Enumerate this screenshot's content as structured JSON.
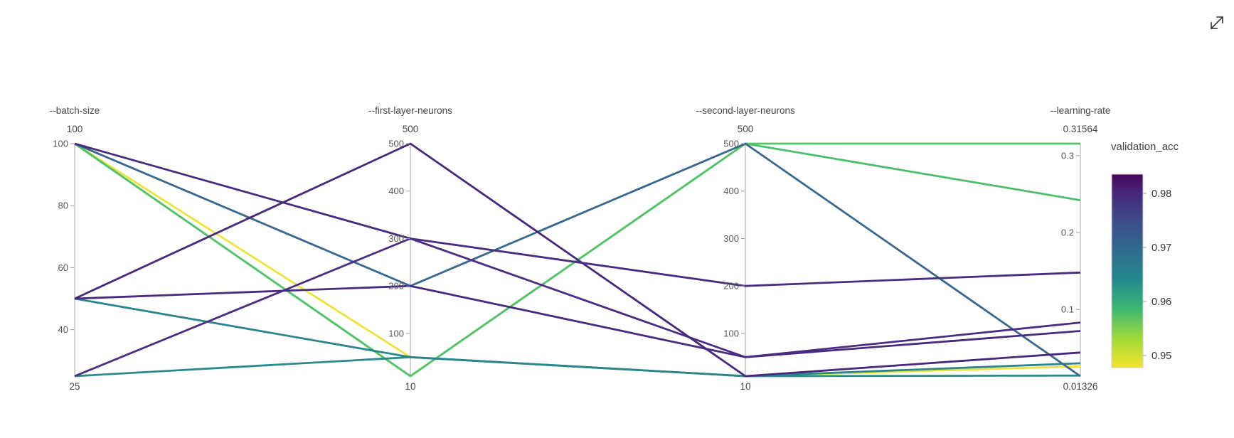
{
  "window": {
    "background": "#ffffff"
  },
  "expand_button": {
    "tooltip": "expand"
  },
  "chart_data": {
    "type": "parallel-coordinates",
    "color_feature": "validation_acc",
    "legend_position": "right",
    "grid": false,
    "axes": [
      {
        "label": "--batch-size",
        "min": 25,
        "max": 100,
        "top_label": "100",
        "bottom_label": "25",
        "ticks": [
          40,
          60,
          80,
          100
        ],
        "tick_labels": [
          "40",
          "60",
          "80",
          "100"
        ]
      },
      {
        "label": "--first-layer-neurons",
        "min": 10,
        "max": 500,
        "top_label": "500",
        "bottom_label": "10",
        "ticks": [
          100,
          200,
          300,
          400,
          500
        ],
        "tick_labels": [
          "100",
          "200",
          "300",
          "400",
          "500"
        ]
      },
      {
        "label": "--second-layer-neurons",
        "min": 10,
        "max": 500,
        "top_label": "500",
        "bottom_label": "10",
        "ticks": [
          100,
          200,
          300,
          400,
          500
        ],
        "tick_labels": [
          "100",
          "200",
          "300",
          "400",
          "500"
        ]
      },
      {
        "label": "--learning-rate",
        "min": 0.01326,
        "max": 0.31564,
        "top_label": "0.31564",
        "bottom_label": "0.01326",
        "ticks": [
          0.1,
          0.2,
          0.3
        ],
        "tick_labels": [
          "0.1",
          "0.2",
          "0.3"
        ]
      }
    ],
    "lines": [
      {
        "values": [
          100,
          50,
          10,
          0.026
        ],
        "validation_acc": 0.948,
        "color": "#ece33b"
      },
      {
        "values": [
          100,
          10,
          500,
          0.242
        ],
        "validation_acc": 0.959,
        "color": "#4dbe6c"
      },
      {
        "values": [
          100,
          10,
          500,
          0.31564
        ],
        "validation_acc": 0.96,
        "color": "#52c366"
      },
      {
        "values": [
          25,
          50,
          10,
          0.014
        ],
        "validation_acc": 0.966,
        "color": "#2b8a8c"
      },
      {
        "values": [
          50,
          50,
          10,
          0.03
        ],
        "validation_acc": 0.967,
        "color": "#2a858d"
      },
      {
        "values": [
          100,
          200,
          500,
          0.01326
        ],
        "validation_acc": 0.971,
        "color": "#38678f"
      },
      {
        "values": [
          25,
          300,
          50,
          0.083
        ],
        "validation_acc": 0.98,
        "color": "#4a2d82"
      },
      {
        "values": [
          50,
          200,
          50,
          0.072
        ],
        "validation_acc": 0.982,
        "color": "#482a7f"
      },
      {
        "values": [
          50,
          500,
          10,
          0.044
        ],
        "validation_acc": 0.983,
        "color": "#46287c"
      },
      {
        "values": [
          100,
          300,
          200,
          0.148
        ],
        "validation_acc": 0.981,
        "color": "#472d7e"
      }
    ],
    "colorbar": {
      "title": "validation_acc",
      "ticks": [
        0.98,
        0.97,
        0.96,
        0.95
      ],
      "tick_labels": [
        "0.98",
        "0.97",
        "0.96",
        "0.95"
      ],
      "gradient": [
        [
          "0%",
          "#440559"
        ],
        [
          "10%",
          "#46287c"
        ],
        [
          "25%",
          "#3d4e8a"
        ],
        [
          "40%",
          "#2f6c8e"
        ],
        [
          "55%",
          "#248a8d"
        ],
        [
          "70%",
          "#3fb873"
        ],
        [
          "85%",
          "#a0da39"
        ],
        [
          "100%",
          "#f4e32c"
        ]
      ]
    }
  }
}
